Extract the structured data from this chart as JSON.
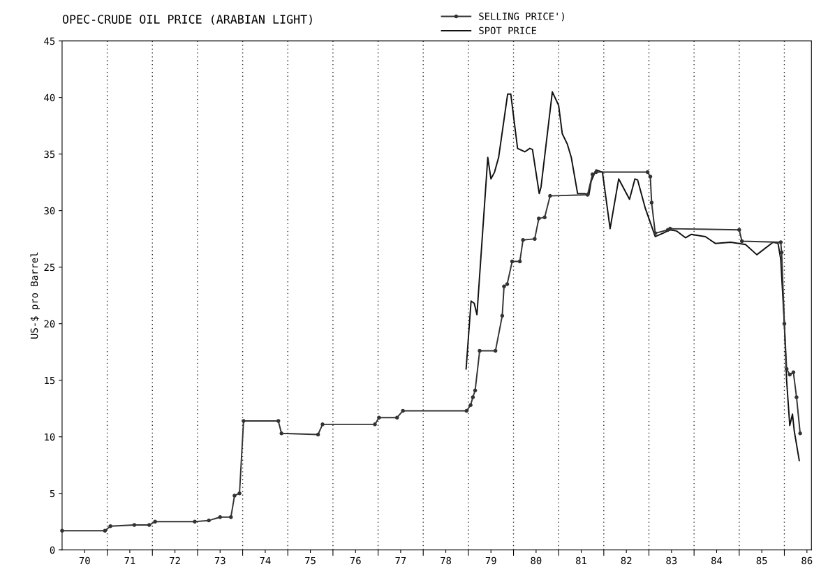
{
  "chart_data": {
    "type": "line",
    "title": "OPEC-CRUDE OIL PRICE (ARABIAN LIGHT)",
    "ylabel": "US-$ pro Barrel",
    "series": [
      {
        "name": "SELLING PRICE')",
        "color": "#333333",
        "marker": "circle",
        "x": [
          69.5,
          70.45,
          70.57,
          71.1,
          71.43,
          71.56,
          72.44,
          72.75,
          73.0,
          73.24,
          73.32,
          73.43,
          73.52,
          74.29,
          74.36,
          75.17,
          75.27,
          76.43,
          76.52,
          76.92,
          77.05,
          78.46,
          78.55,
          78.6,
          78.65,
          78.75,
          79.1,
          79.25,
          79.29,
          79.36,
          79.47,
          79.64,
          79.71,
          79.97,
          80.06,
          80.19,
          80.31,
          81.14,
          81.25,
          81.33,
          82.47,
          82.53,
          82.56,
          82.64,
          82.92,
          82.97,
          84.5,
          84.56,
          85.42,
          85.44,
          85.5,
          85.55,
          85.62,
          85.7,
          85.77,
          85.85
        ],
        "values": [
          1.7,
          1.7,
          2.1,
          2.2,
          2.2,
          2.5,
          2.5,
          2.6,
          2.9,
          2.9,
          4.8,
          5.0,
          11.4,
          11.4,
          10.3,
          10.2,
          11.1,
          11.1,
          11.7,
          11.7,
          12.3,
          12.3,
          12.8,
          13.5,
          14.1,
          17.6,
          17.6,
          20.7,
          23.3,
          23.5,
          25.5,
          25.5,
          27.4,
          27.5,
          29.3,
          29.4,
          31.3,
          31.4,
          33.2,
          33.4,
          33.4,
          33.0,
          30.7,
          28.0,
          28.3,
          28.4,
          28.3,
          27.3,
          27.2,
          26.3,
          20.0,
          16.0,
          15.5,
          15.7,
          13.5,
          10.3
        ]
      },
      {
        "name": "SPOT PRICE",
        "color": "#111111",
        "marker": "none",
        "x": [
          78.45,
          78.56,
          78.63,
          78.69,
          78.93,
          79.0,
          79.08,
          79.17,
          79.37,
          79.44,
          79.59,
          79.75,
          79.86,
          79.92,
          80.07,
          80.11,
          80.36,
          80.5,
          80.58,
          80.69,
          80.78,
          80.92,
          81.08,
          81.17,
          81.22,
          81.33,
          81.47,
          81.64,
          81.83,
          82.07,
          82.19,
          82.25,
          82.42,
          82.64,
          82.81,
          82.97,
          83.11,
          83.31,
          83.44,
          83.75,
          83.97,
          84.31,
          84.64,
          84.89,
          85.25,
          85.36,
          85.42,
          85.5,
          85.55,
          85.62,
          85.68,
          85.72,
          85.83
        ],
        "values": [
          16.0,
          22.0,
          21.8,
          20.8,
          34.7,
          32.8,
          33.4,
          34.7,
          40.3,
          40.3,
          35.5,
          35.2,
          35.5,
          35.4,
          31.5,
          32.1,
          40.5,
          39.3,
          36.8,
          35.9,
          34.7,
          31.5,
          31.5,
          31.4,
          32.6,
          33.6,
          33.4,
          28.4,
          32.8,
          31.0,
          32.8,
          32.7,
          30.2,
          27.7,
          28.0,
          28.3,
          28.2,
          27.6,
          27.9,
          27.7,
          27.1,
          27.2,
          27.0,
          26.1,
          27.2,
          27.1,
          25.7,
          20.0,
          15.0,
          11.0,
          12.0,
          10.5,
          7.9
        ]
      }
    ],
    "xlim": [
      69.5,
      86.1
    ],
    "xticks": [
      70,
      {
        "value": 70.5,
        "label": null
      },
      71,
      {
        "value": 71.5,
        "label": null
      },
      72,
      {
        "value": 72.5,
        "label": null
      },
      73,
      {
        "value": 73.5,
        "label": null
      },
      74,
      {
        "value": 74.5,
        "label": null
      },
      75,
      {
        "value": 75.5,
        "label": null
      },
      76,
      {
        "value": 76.5,
        "label": null
      },
      77,
      {
        "value": 77.5,
        "label": null
      },
      78,
      {
        "value": 78.5,
        "label": null
      },
      79,
      {
        "value": 79.5,
        "label": null
      },
      80,
      {
        "value": 80.5,
        "label": null
      },
      81,
      {
        "value": 81.5,
        "label": null
      },
      82,
      {
        "value": 82.5,
        "label": null
      },
      83,
      {
        "value": 83.5,
        "label": null
      },
      84,
      {
        "value": 84.5,
        "label": null
      },
      85,
      {
        "value": 85.5,
        "label": null
      },
      86
    ],
    "ylim": [
      0,
      45
    ],
    "yticks": [
      0,
      5,
      10,
      15,
      20,
      25,
      30,
      35,
      40,
      45
    ],
    "grid": "x",
    "legend": "top",
    "line_style": "solid"
  }
}
